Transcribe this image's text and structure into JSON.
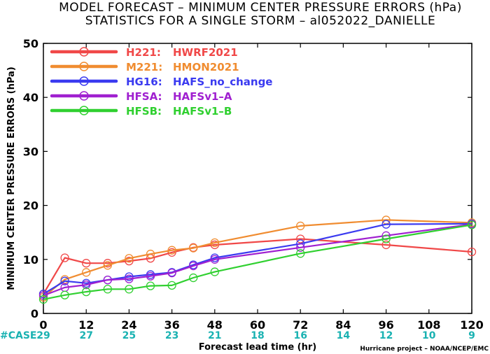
{
  "title_line1": "MODEL FORECAST – MINIMUM CENTER PRESSURE ERRORS (hPa)",
  "title_line2": "STATISTICS FOR A SINGLE STORM – al052022_DANIELLE",
  "credit": "Hurricane project – NOAA/NCEP/EMC",
  "case_label": "#CASE",
  "chart_data": {
    "type": "line",
    "title": "MODEL FORECAST – MINIMUM CENTER PRESSURE ERRORS (hPa)",
    "subtitle": "STATISTICS FOR A SINGLE STORM – al052022_DANIELLE",
    "xlabel": "Forecast lead time (hr)",
    "ylabel": "MINIMUM CENTER PRESSURE ERRORS (hPa)",
    "xlim": [
      0,
      120
    ],
    "ylim": [
      0,
      50
    ],
    "xticks": [
      0,
      12,
      24,
      36,
      48,
      60,
      72,
      84,
      96,
      108,
      120
    ],
    "yticks": [
      0,
      10,
      20,
      30,
      40,
      50
    ],
    "legend_position": "top-left",
    "case_counts": {
      "x": [
        0,
        12,
        24,
        36,
        48,
        60,
        72,
        84,
        96,
        108,
        120
      ],
      "values": [
        29,
        27,
        25,
        23,
        21,
        18,
        16,
        14,
        12,
        10,
        9
      ]
    },
    "series": [
      {
        "label": "H221:",
        "name": "HWRF2021",
        "color": "#f04848",
        "x": [
          0,
          6,
          12,
          18,
          24,
          30,
          36,
          42,
          48,
          72,
          96,
          120
        ],
        "y": [
          3.6,
          10.3,
          9.3,
          9.3,
          9.7,
          10.2,
          11.3,
          12.2,
          12.7,
          13.8,
          12.7,
          11.4
        ]
      },
      {
        "label": "M221:",
        "name": "HMON2021",
        "color": "#f08c30",
        "x": [
          0,
          6,
          12,
          18,
          24,
          30,
          36,
          42,
          48,
          72,
          96,
          120
        ],
        "y": [
          3.0,
          6.3,
          7.6,
          8.9,
          10.2,
          11.0,
          11.7,
          12.1,
          13.1,
          16.2,
          17.3,
          16.8
        ]
      },
      {
        "label": "HG16:",
        "name": "HAFS_no_change",
        "color": "#3a3af0",
        "x": [
          0,
          6,
          12,
          18,
          24,
          30,
          36,
          42,
          48,
          72,
          96,
          120
        ],
        "y": [
          3.6,
          6.0,
          5.6,
          6.2,
          6.8,
          7.2,
          7.6,
          9.0,
          10.3,
          12.9,
          16.5,
          16.6
        ]
      },
      {
        "label": "HFSA:",
        "name": "HAFSv1–A",
        "color": "#a020d0",
        "x": [
          0,
          6,
          12,
          18,
          24,
          30,
          36,
          42,
          48,
          72,
          96,
          120
        ],
        "y": [
          3.3,
          4.8,
          5.3,
          6.2,
          6.4,
          6.9,
          7.5,
          8.8,
          10.0,
          12.2,
          14.4,
          16.5
        ]
      },
      {
        "label": "HFSB:",
        "name": "HAFSv1–B",
        "color": "#30d030",
        "x": [
          0,
          6,
          12,
          18,
          24,
          30,
          36,
          42,
          48,
          72,
          96,
          120
        ],
        "y": [
          2.6,
          3.4,
          4.0,
          4.5,
          4.5,
          5.1,
          5.2,
          6.6,
          7.7,
          11.1,
          13.8,
          16.4
        ]
      }
    ]
  }
}
